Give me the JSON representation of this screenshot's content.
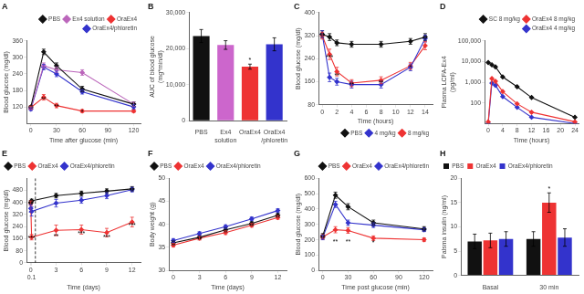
{
  "chart_data": [
    {
      "type": "line",
      "title": "A",
      "xlabel": "Time after glucose (min)",
      "ylabel": "Blood glucose (mg/dl)",
      "x": [
        0,
        15,
        30,
        60,
        120
      ],
      "series": [
        {
          "name": "PBS",
          "color": "#111111",
          "values": [
            120,
            320,
            270,
            185,
            130
          ],
          "errors": [
            5,
            10,
            10,
            10,
            8
          ]
        },
        {
          "name": "Ex4 solution",
          "color": "#bb66bb",
          "values": [
            115,
            270,
            255,
            245,
            130
          ],
          "errors": [
            5,
            10,
            10,
            10,
            8
          ]
        },
        {
          "name": "OraEx4",
          "color": "#ee3333",
          "values": [
            118,
            155,
            125,
            105,
            105
          ],
          "errors": [
            5,
            10,
            8,
            5,
            5
          ]
        },
        {
          "name": "OraEx4/phloretin",
          "color": "#3333cc",
          "values": [
            112,
            265,
            240,
            175,
            120
          ],
          "errors": [
            5,
            10,
            10,
            8,
            8
          ]
        }
      ],
      "xlim": [
        -5,
        128
      ],
      "xticks": [
        0,
        30,
        60,
        90,
        120
      ],
      "ylim": [
        60,
        360
      ],
      "yticks": [
        120,
        180,
        240,
        300,
        360
      ],
      "marker": "diamond",
      "legend": "upper right",
      "grid": false,
      "annotations": [
        {
          "text": "**",
          "x": 15,
          "y": 140
        },
        {
          "text": "**",
          "x": 30,
          "y": 113
        },
        {
          "text": "*",
          "x": 60,
          "y": 93
        }
      ]
    },
    {
      "type": "bar",
      "title": "B",
      "ylabel": "AUC of blood glucose\n(mg*min/dl)",
      "categories": [
        "PBS",
        "Ex4\nsolution",
        "OraEx4",
        "OraEx4\n/phloretin"
      ],
      "values": [
        23500,
        21000,
        15000,
        21200
      ],
      "errors": [
        1800,
        1200,
        700,
        1800
      ],
      "colors": [
        "#111111",
        "#cc66cc",
        "#ee3333",
        "#3333cc"
      ],
      "ylim": [
        0,
        30000
      ],
      "yticks": [
        0,
        {
          "value": 10000,
          "label": "10,000"
        },
        {
          "value": 20000,
          "label": "20,000"
        },
        {
          "value": 30000,
          "label": "30,000"
        }
      ],
      "grid": false,
      "annotations": [
        {
          "text": "*",
          "x": "OraEx4",
          "y": 16200
        }
      ]
    },
    {
      "type": "line",
      "title": "C",
      "xlabel": "Time (hours)",
      "ylabel": "Blood glucose (mg/dl)",
      "x": [
        0,
        1,
        2,
        4,
        8,
        12,
        14
      ],
      "series": [
        {
          "name": "PBS",
          "color": "#111111",
          "values": [
            325,
            315,
            295,
            290,
            290,
            300,
            315
          ],
          "errors": [
            12,
            12,
            10,
            10,
            10,
            10,
            12
          ]
        },
        {
          "name": "4 mg/kg",
          "color": "#3333cc",
          "values": [
            325,
            175,
            160,
            150,
            150,
            210,
            310
          ],
          "errors": [
            12,
            15,
            12,
            12,
            12,
            12,
            12
          ]
        },
        {
          "name": "8 mg/kg",
          "color": "#ee3333",
          "values": [
            320,
            255,
            195,
            155,
            165,
            215,
            285
          ],
          "errors": [
            12,
            18,
            15,
            12,
            12,
            12,
            14
          ]
        }
      ],
      "xlim": [
        -0.5,
        15
      ],
      "xticks": [
        0,
        2,
        4,
        6,
        8,
        10,
        12,
        14
      ],
      "ylim": [
        80,
        400
      ],
      "yticks": [
        80,
        160,
        240,
        320,
        400
      ],
      "marker": "diamond",
      "legend": "lower right",
      "grid": false,
      "annotations": [
        {
          "text": "***",
          "x": 1,
          "y": 237
        },
        {
          "text": "**",
          "x": 2,
          "y": 173
        },
        {
          "text": "**",
          "x": 4,
          "y": 141
        },
        {
          "text": "**",
          "x": 8,
          "y": 149
        },
        {
          "text": "*",
          "x": 12,
          "y": 204
        }
      ]
    },
    {
      "type": "line",
      "title": "D",
      "xlabel": "Time (hours)",
      "ylabel": "Plasma LCFA-Ex4\n(pg/ml)",
      "x": [
        0,
        1,
        2,
        4,
        8,
        12,
        24
      ],
      "series": [
        {
          "name": "SC 8 mg/kg",
          "color": "#111111",
          "values": [
            9000,
            7000,
            5500,
            1800,
            600,
            180,
            20
          ]
        },
        {
          "name": "OraEx4 8 mg/kg",
          "color": "#ee3333",
          "values": [
            12,
            1500,
            1100,
            350,
            90,
            35,
            12
          ]
        },
        {
          "name": "OraEx4 4 mg/kg",
          "color": "#3333cc",
          "values": [
            10,
            900,
            700,
            200,
            60,
            20,
            10
          ]
        }
      ],
      "xlim": [
        -1,
        25
      ],
      "xticks": [
        0,
        4,
        8,
        12,
        16,
        20,
        24
      ],
      "ylim": [
        10,
        100000
      ],
      "yticks": [
        100,
        {
          "value": 1000,
          "label": "1,000"
        },
        {
          "value": 10000,
          "label": "10,000"
        },
        {
          "value": 100000,
          "label": "100,000"
        }
      ],
      "log": "y",
      "marker": "diamond",
      "legend": "upper right",
      "grid": false
    },
    {
      "type": "line",
      "title": "E",
      "xlabel": "Time (days)",
      "ylabel": "Blood glucose (mg/dl)",
      "x": [
        0,
        0.1,
        3,
        6,
        9,
        12
      ],
      "series": [
        {
          "name": "PBS",
          "color": "#111111",
          "values": [
            400,
            410,
            445,
            460,
            475,
            490
          ],
          "errors": [
            12,
            12,
            15,
            15,
            15,
            15
          ]
        },
        {
          "name": "OraEx4",
          "color": "#ee3333",
          "values": [
            395,
            170,
            215,
            220,
            200,
            270
          ],
          "errors": [
            15,
            18,
            35,
            30,
            28,
            32
          ]
        },
        {
          "name": "OraEx4/phloretin",
          "color": "#3333cc",
          "values": [
            360,
            340,
            395,
            415,
            445,
            485
          ],
          "errors": [
            25,
            30,
            25,
            20,
            20,
            15
          ]
        }
      ],
      "xlim": [
        -0.5,
        13
      ],
      "xticks": [
        0,
        0.1,
        3,
        6,
        9,
        12
      ],
      "ylim": [
        0,
        560
      ],
      "yticks": [
        0,
        80,
        160,
        240,
        320,
        400,
        480
      ],
      "marker": "diamond",
      "legend": "upper left",
      "grid": false,
      "vlines": [
        {
          "x": 0.55,
          "line_style": "dashed"
        }
      ],
      "annotations": [
        {
          "text": "***",
          "x": 0.1,
          "y": 148
        },
        {
          "text": "**",
          "x": 3,
          "y": 165
        },
        {
          "text": "***",
          "x": 6,
          "y": 178
        },
        {
          "text": "***",
          "x": 9,
          "y": 158
        },
        {
          "text": "***",
          "x": 12,
          "y": 232
        }
      ]
    },
    {
      "type": "line",
      "title": "F",
      "xlabel": "Time (days)",
      "ylabel": "Body weight (g)",
      "x": [
        0,
        3,
        6,
        9,
        12
      ],
      "series": [
        {
          "name": "PBS",
          "color": "#111111",
          "values": [
            36.0,
            37.2,
            38.8,
            40.2,
            42.0
          ],
          "errors": [
            0.4,
            0.4,
            0.4,
            0.4,
            0.4
          ]
        },
        {
          "name": "OraEx4",
          "color": "#ee3333",
          "values": [
            35.5,
            37.0,
            38.2,
            39.8,
            41.5
          ],
          "errors": [
            0.4,
            0.4,
            0.4,
            0.4,
            0.4
          ]
        },
        {
          "name": "OraEx4/phloretin",
          "color": "#3333cc",
          "values": [
            36.5,
            38.0,
            39.5,
            41.2,
            43.0
          ],
          "errors": [
            0.4,
            0.4,
            0.4,
            0.4,
            0.4
          ]
        }
      ],
      "xlim": [
        -0.5,
        13
      ],
      "xticks": [
        0,
        3,
        6,
        9,
        12
      ],
      "ylim": [
        30,
        50
      ],
      "yticks": [
        30,
        35,
        40,
        45,
        50
      ],
      "marker": "diamond",
      "legend": "upper left",
      "grid": false
    },
    {
      "type": "line",
      "title": "G",
      "xlabel": "Time post glucose (min)",
      "ylabel": "Blood glucose (mg/dl)",
      "x": [
        0,
        15,
        30,
        60,
        120
      ],
      "series": [
        {
          "name": "PBS",
          "color": "#111111",
          "values": [
            225,
            490,
            415,
            310,
            270
          ],
          "errors": [
            15,
            20,
            20,
            18,
            15
          ]
        },
        {
          "name": "OraEx4",
          "color": "#ee3333",
          "values": [
            218,
            265,
            260,
            210,
            200
          ],
          "errors": [
            15,
            20,
            18,
            15,
            12
          ]
        },
        {
          "name": "OraEx4/phloretin",
          "color": "#3333cc",
          "values": [
            215,
            430,
            310,
            295,
            265
          ],
          "errors": [
            15,
            20,
            18,
            15,
            12
          ]
        }
      ],
      "xlim": [
        -5,
        130
      ],
      "xticks": [
        0,
        30,
        60,
        90,
        120
      ],
      "ylim": [
        0,
        600
      ],
      "yticks": [
        0,
        100,
        200,
        300,
        400,
        500,
        600
      ],
      "marker": "diamond",
      "legend": "upper right",
      "grid": false,
      "annotations": [
        {
          "text": "**",
          "x": 15,
          "y": 175
        },
        {
          "text": "**",
          "x": 30,
          "y": 175
        },
        {
          "text": "*",
          "x": 60,
          "y": 170
        }
      ]
    },
    {
      "type": "bar",
      "title": "H",
      "ylabel": "Palsma insulin (ng/ml)",
      "categories": [
        "Basal",
        "30 min"
      ],
      "series": [
        {
          "name": "PBS",
          "color": "#111111",
          "values": [
            7.0,
            7.5
          ],
          "errors": [
            1.5,
            1.5
          ]
        },
        {
          "name": "OraEx4",
          "color": "#ee3333",
          "values": [
            7.2,
            15.0
          ],
          "errors": [
            1.5,
            2.0
          ]
        },
        {
          "name": "OraEx4/phloretin",
          "color": "#3333cc",
          "values": [
            7.5,
            7.8
          ],
          "errors": [
            1.5,
            1.8
          ]
        }
      ],
      "ylim": [
        0,
        20
      ],
      "yticks": [
        0,
        5,
        10,
        15,
        20
      ],
      "legend": "upper left",
      "grid": false,
      "annotations": [
        {
          "text": "*",
          "x": "30 min",
          "y": 17.5
        }
      ]
    }
  ]
}
